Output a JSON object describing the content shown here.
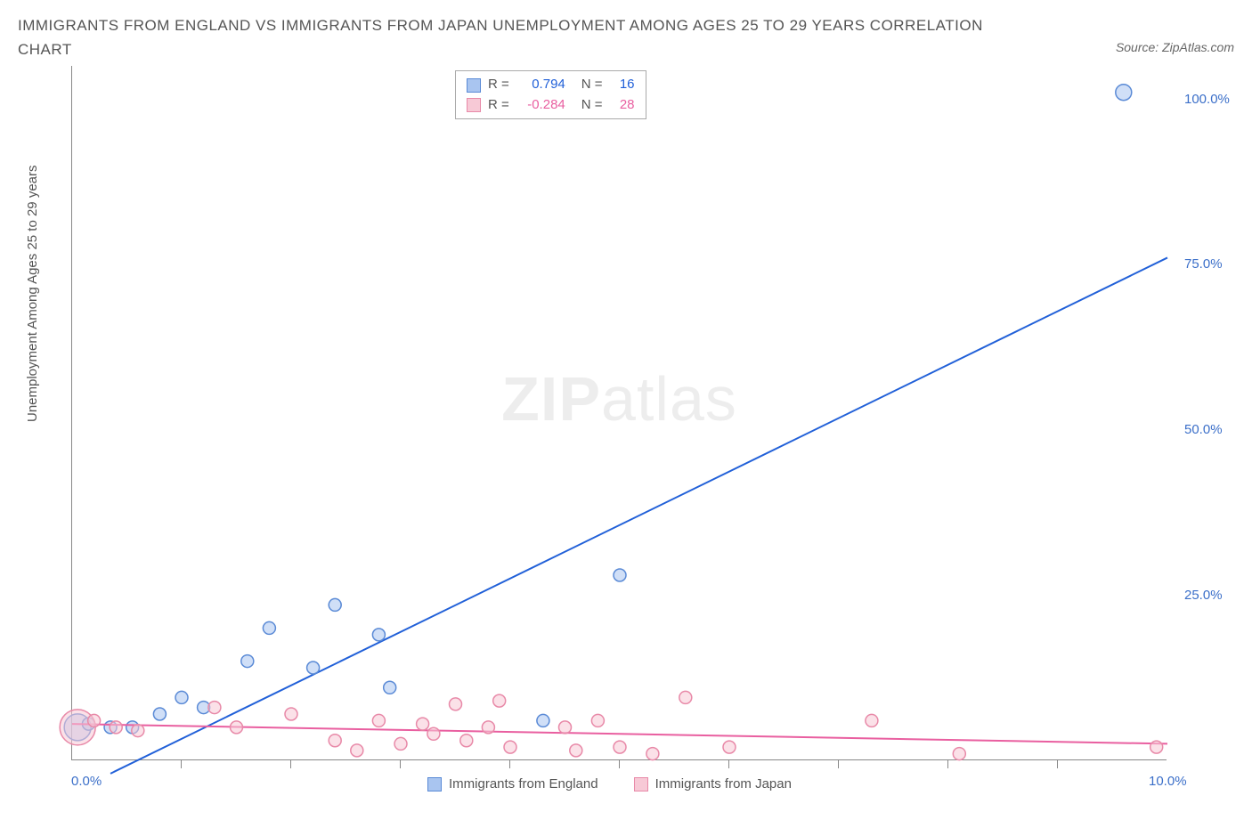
{
  "title": "IMMIGRANTS FROM ENGLAND VS IMMIGRANTS FROM JAPAN UNEMPLOYMENT AMONG AGES 25 TO 29 YEARS CORRELATION CHART",
  "source": "Source: ZipAtlas.com",
  "ylabel": "Unemployment Among Ages 25 to 29 years",
  "watermark_bold": "ZIP",
  "watermark_light": "atlas",
  "chart": {
    "type": "scatter",
    "x_range": [
      0,
      10
    ],
    "y_range": [
      0,
      105
    ],
    "x_ticks": [
      {
        "v": 0,
        "label": "0.0%"
      },
      {
        "v": 10,
        "label": "10.0%"
      }
    ],
    "x_minor_ticks": [
      1,
      2,
      3,
      4,
      5,
      6,
      7,
      8,
      9
    ],
    "y_ticks": [
      {
        "v": 25,
        "label": "25.0%"
      },
      {
        "v": 50,
        "label": "50.0%"
      },
      {
        "v": 75,
        "label": "75.0%"
      },
      {
        "v": 100,
        "label": "100.0%"
      }
    ],
    "series": [
      {
        "name": "Immigrants from England",
        "color_fill": "#a9c5f0",
        "color_stroke": "#5a8ad6",
        "line_color": "#2160d8",
        "r_label": "R =",
        "r_value": "0.794",
        "n_label": "N =",
        "n_value": "16",
        "trend": {
          "x1": 0.35,
          "y1": -2,
          "x2": 10.0,
          "y2": 76
        },
        "points": [
          {
            "x": 0.05,
            "y": 5,
            "r": 15
          },
          {
            "x": 0.15,
            "y": 5.5,
            "r": 7
          },
          {
            "x": 0.35,
            "y": 5,
            "r": 7
          },
          {
            "x": 0.55,
            "y": 5,
            "r": 7
          },
          {
            "x": 0.8,
            "y": 7,
            "r": 7
          },
          {
            "x": 1.0,
            "y": 9.5,
            "r": 7
          },
          {
            "x": 1.2,
            "y": 8,
            "r": 7
          },
          {
            "x": 1.6,
            "y": 15,
            "r": 7
          },
          {
            "x": 1.8,
            "y": 20,
            "r": 7
          },
          {
            "x": 2.2,
            "y": 14,
            "r": 7
          },
          {
            "x": 2.4,
            "y": 23.5,
            "r": 7
          },
          {
            "x": 2.8,
            "y": 19,
            "r": 7
          },
          {
            "x": 2.9,
            "y": 11,
            "r": 7
          },
          {
            "x": 4.3,
            "y": 6,
            "r": 7
          },
          {
            "x": 5.0,
            "y": 28,
            "r": 7
          },
          {
            "x": 9.6,
            "y": 101,
            "r": 9
          }
        ]
      },
      {
        "name": "Immigrants from Japan",
        "color_fill": "#f7c9d6",
        "color_stroke": "#e889a8",
        "line_color": "#e95fa0",
        "r_label": "R =",
        "r_value": "-0.284",
        "n_label": "N =",
        "n_value": "28",
        "trend": {
          "x1": 0,
          "y1": 5.5,
          "x2": 10.0,
          "y2": 2.5
        },
        "points": [
          {
            "x": 0.05,
            "y": 5,
            "r": 20
          },
          {
            "x": 0.2,
            "y": 6,
            "r": 7
          },
          {
            "x": 0.4,
            "y": 5,
            "r": 7
          },
          {
            "x": 0.6,
            "y": 4.5,
            "r": 7
          },
          {
            "x": 1.3,
            "y": 8,
            "r": 7
          },
          {
            "x": 1.5,
            "y": 5,
            "r": 7
          },
          {
            "x": 2.0,
            "y": 7,
            "r": 7
          },
          {
            "x": 2.4,
            "y": 3,
            "r": 7
          },
          {
            "x": 2.6,
            "y": 1.5,
            "r": 7
          },
          {
            "x": 2.8,
            "y": 6,
            "r": 7
          },
          {
            "x": 3.0,
            "y": 2.5,
            "r": 7
          },
          {
            "x": 3.2,
            "y": 5.5,
            "r": 7
          },
          {
            "x": 3.3,
            "y": 4,
            "r": 7
          },
          {
            "x": 3.5,
            "y": 8.5,
            "r": 7
          },
          {
            "x": 3.6,
            "y": 3,
            "r": 7
          },
          {
            "x": 3.8,
            "y": 5,
            "r": 7
          },
          {
            "x": 3.9,
            "y": 9,
            "r": 7
          },
          {
            "x": 4.0,
            "y": 2,
            "r": 7
          },
          {
            "x": 4.5,
            "y": 5,
            "r": 7
          },
          {
            "x": 4.6,
            "y": 1.5,
            "r": 7
          },
          {
            "x": 4.8,
            "y": 6,
            "r": 7
          },
          {
            "x": 5.0,
            "y": 2,
            "r": 7
          },
          {
            "x": 5.3,
            "y": 1,
            "r": 7
          },
          {
            "x": 5.6,
            "y": 9.5,
            "r": 7
          },
          {
            "x": 6.0,
            "y": 2,
            "r": 7
          },
          {
            "x": 7.3,
            "y": 6,
            "r": 7
          },
          {
            "x": 8.1,
            "y": 1,
            "r": 7
          },
          {
            "x": 9.9,
            "y": 2,
            "r": 7
          }
        ]
      }
    ],
    "legend_bottom": [
      {
        "label": "Immigrants from England",
        "fill": "#a9c5f0",
        "stroke": "#5a8ad6"
      },
      {
        "label": "Immigrants from Japan",
        "fill": "#f7c9d6",
        "stroke": "#e889a8"
      }
    ]
  }
}
